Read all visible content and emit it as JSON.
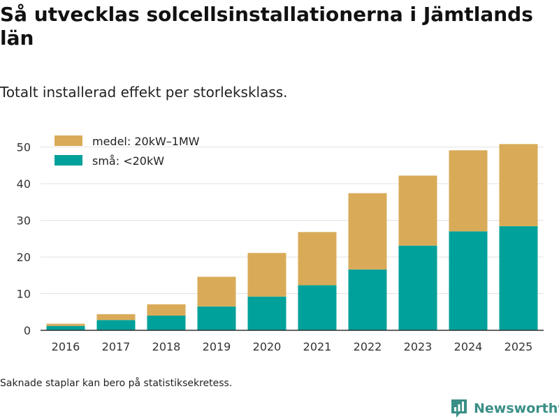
{
  "header": {
    "title": "Så utvecklas solcellsinstallationerna i Jämtlands län",
    "subtitle": "Totalt installerad effekt per storleksklass."
  },
  "footer": {
    "note": "Saknade staplar kan bero på statistiksekretess.",
    "brand": "Newsworthy"
  },
  "colors": {
    "medel": "#d9ab58",
    "sma": "#00a19a",
    "grid": "#e2e2e2",
    "axis": "#333333",
    "brand": "#3a8f86"
  },
  "chart_data": {
    "type": "bar",
    "stacked": true,
    "categories": [
      "2016",
      "2017",
      "2018",
      "2019",
      "2020",
      "2021",
      "2022",
      "2023",
      "2024",
      "2025"
    ],
    "series": [
      {
        "key": "sma",
        "name": "små: <20kW",
        "values": [
          1.2,
          2.8,
          4.0,
          6.5,
          9.2,
          12.3,
          16.6,
          23.1,
          27.0,
          28.4
        ]
      },
      {
        "key": "medel",
        "name": "medel: 20kW–1MW",
        "values": [
          0.6,
          1.6,
          3.1,
          8.1,
          11.9,
          14.5,
          20.8,
          19.1,
          22.1,
          22.4
        ]
      }
    ],
    "legend_order": [
      "medel",
      "sma"
    ],
    "yticks": [
      0,
      10,
      20,
      30,
      40,
      50
    ],
    "ylim": [
      0,
      52
    ],
    "xlabel": "",
    "ylabel": ""
  }
}
